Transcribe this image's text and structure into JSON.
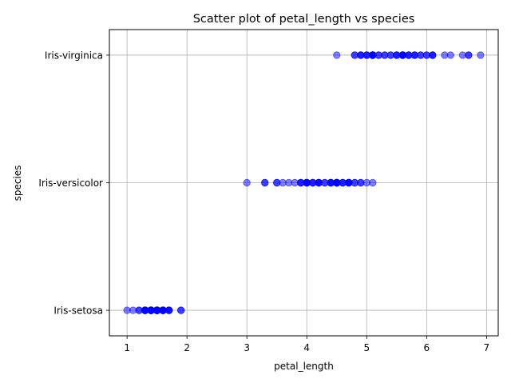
{
  "chart_data": {
    "type": "scatter",
    "title": "Scatter plot of petal_length vs species",
    "xlabel": "petal_length",
    "ylabel": "species",
    "xlim": [
      0.705,
      7.195
    ],
    "x_ticks": [
      1,
      2,
      3,
      4,
      5,
      6,
      7
    ],
    "categories": [
      "Iris-setosa",
      "Iris-versicolor",
      "Iris-virginica"
    ],
    "grid": true,
    "marker_color": "#0000ff",
    "marker_alpha": 0.5,
    "series": [
      {
        "category": "Iris-setosa",
        "x": [
          1.4,
          1.4,
          1.3,
          1.5,
          1.4,
          1.7,
          1.4,
          1.5,
          1.4,
          1.5,
          1.5,
          1.6,
          1.4,
          1.1,
          1.2,
          1.5,
          1.3,
          1.4,
          1.7,
          1.5,
          1.7,
          1.5,
          1.0,
          1.7,
          1.9,
          1.6,
          1.6,
          1.5,
          1.4,
          1.6,
          1.6,
          1.5,
          1.5,
          1.4,
          1.5,
          1.2,
          1.3,
          1.5,
          1.3,
          1.5,
          1.3,
          1.3,
          1.3,
          1.6,
          1.9,
          1.4,
          1.6,
          1.4,
          1.5,
          1.4
        ]
      },
      {
        "category": "Iris-versicolor",
        "x": [
          4.7,
          4.5,
          4.9,
          4.0,
          4.6,
          4.5,
          4.7,
          3.3,
          4.6,
          3.9,
          3.5,
          4.2,
          4.0,
          4.7,
          3.6,
          4.4,
          4.5,
          4.1,
          4.5,
          3.9,
          4.8,
          4.0,
          4.9,
          4.7,
          4.3,
          4.4,
          4.8,
          5.0,
          4.5,
          3.5,
          3.8,
          3.7,
          3.9,
          5.1,
          4.5,
          4.5,
          4.7,
          4.4,
          4.1,
          4.0,
          4.4,
          4.6,
          4.0,
          3.3,
          4.2,
          4.2,
          4.2,
          4.3,
          3.0,
          4.1
        ]
      },
      {
        "category": "Iris-virginica",
        "x": [
          6.0,
          5.1,
          5.9,
          5.6,
          5.8,
          6.6,
          4.5,
          6.3,
          5.8,
          6.1,
          5.1,
          5.3,
          5.5,
          5.0,
          5.1,
          5.3,
          5.5,
          6.7,
          6.9,
          5.0,
          5.7,
          4.9,
          6.7,
          4.9,
          5.7,
          6.0,
          4.8,
          4.9,
          5.6,
          5.8,
          6.1,
          6.4,
          5.6,
          5.1,
          5.6,
          6.1,
          5.6,
          5.5,
          4.8,
          5.4,
          5.6,
          5.1,
          5.1,
          5.9,
          5.7,
          5.2,
          5.0,
          5.2,
          5.4,
          5.1
        ]
      }
    ]
  }
}
